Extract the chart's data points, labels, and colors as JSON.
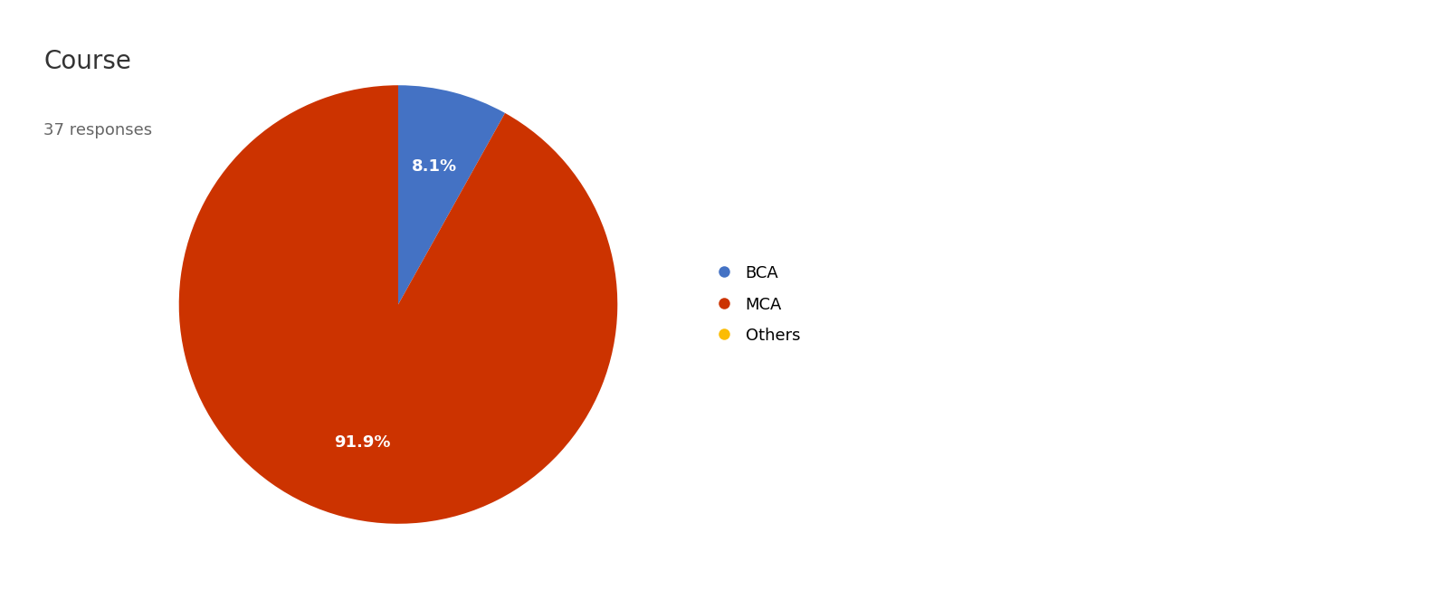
{
  "title": "Course",
  "subtitle": "37 responses",
  "labels": [
    "BCA",
    "MCA",
    "Others"
  ],
  "values": [
    8.1,
    91.9,
    0.0
  ],
  "colors": [
    "#4472c4",
    "#cc3300",
    "#fbbc04"
  ],
  "startangle": 90,
  "title_fontsize": 20,
  "subtitle_fontsize": 13,
  "background_color": "#ffffff",
  "text_color": "#333333",
  "legend_fontsize": 13
}
